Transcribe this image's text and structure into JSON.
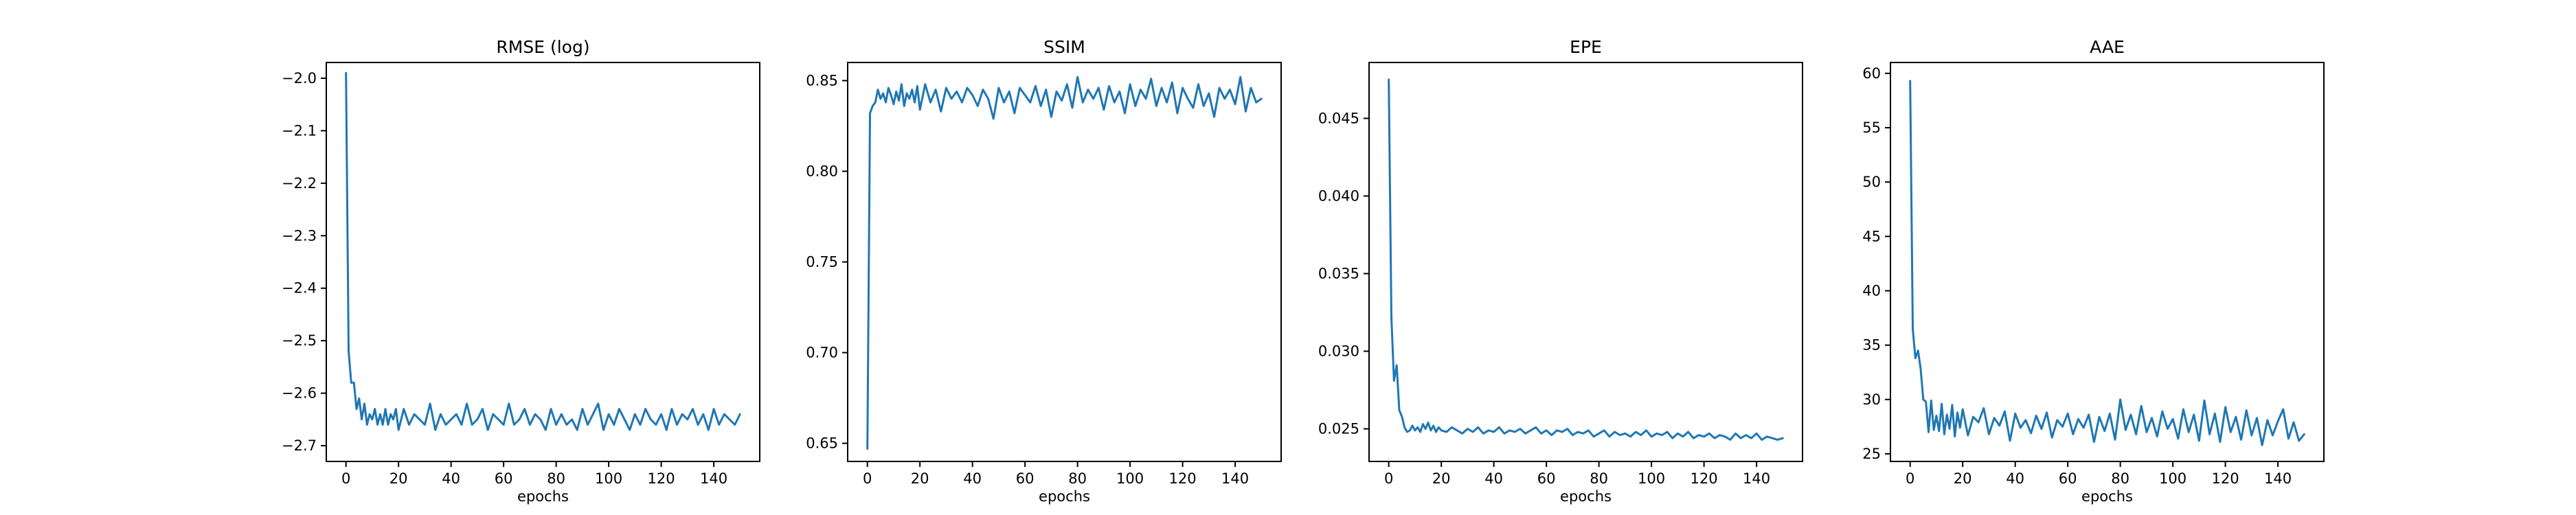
{
  "colors": {
    "series": "#1f77b4",
    "axis": "#000000",
    "background": "#ffffff"
  },
  "chart_data": [
    {
      "type": "line",
      "title": "RMSE (log)",
      "xlabel": "epochs",
      "ylabel": "",
      "xlim": [
        -7.5,
        157.5
      ],
      "ylim": [
        -2.73,
        -1.97
      ],
      "xticks": [
        0,
        20,
        40,
        60,
        80,
        100,
        120,
        140
      ],
      "yticks": [
        -2.0,
        -2.1,
        -2.2,
        -2.3,
        -2.4,
        -2.5,
        -2.6,
        -2.7
      ],
      "ytick_labels": [
        "−2.0",
        "−2.1",
        "−2.2",
        "−2.3",
        "−2.4",
        "−2.5",
        "−2.6",
        "−2.7"
      ],
      "grid": false,
      "legend": "none",
      "series": [
        {
          "x": [
            0,
            1,
            2,
            3,
            4,
            5,
            6,
            7,
            8,
            9,
            10,
            11,
            12,
            13,
            14,
            15,
            16,
            17,
            18,
            19,
            20,
            22,
            24,
            26,
            28,
            30,
            32,
            34,
            36,
            38,
            40,
            42,
            44,
            46,
            48,
            50,
            52,
            54,
            56,
            58,
            60,
            62,
            64,
            66,
            68,
            70,
            72,
            74,
            76,
            78,
            80,
            82,
            84,
            86,
            88,
            90,
            92,
            94,
            96,
            98,
            100,
            102,
            104,
            106,
            108,
            110,
            112,
            114,
            116,
            118,
            120,
            122,
            124,
            126,
            128,
            130,
            132,
            134,
            136,
            138,
            140,
            142,
            144,
            146,
            148,
            150
          ],
          "values": [
            -1.99,
            -2.52,
            -2.58,
            -2.58,
            -2.63,
            -2.61,
            -2.65,
            -2.62,
            -2.66,
            -2.64,
            -2.65,
            -2.63,
            -2.66,
            -2.64,
            -2.66,
            -2.63,
            -2.66,
            -2.64,
            -2.65,
            -2.63,
            -2.67,
            -2.63,
            -2.66,
            -2.64,
            -2.65,
            -2.66,
            -2.62,
            -2.67,
            -2.64,
            -2.66,
            -2.65,
            -2.64,
            -2.66,
            -2.62,
            -2.66,
            -2.65,
            -2.63,
            -2.67,
            -2.64,
            -2.65,
            -2.66,
            -2.62,
            -2.66,
            -2.65,
            -2.63,
            -2.66,
            -2.64,
            -2.65,
            -2.67,
            -2.63,
            -2.66,
            -2.64,
            -2.66,
            -2.65,
            -2.67,
            -2.63,
            -2.66,
            -2.64,
            -2.62,
            -2.67,
            -2.64,
            -2.66,
            -2.63,
            -2.65,
            -2.67,
            -2.64,
            -2.66,
            -2.63,
            -2.65,
            -2.66,
            -2.64,
            -2.67,
            -2.63,
            -2.66,
            -2.64,
            -2.65,
            -2.63,
            -2.66,
            -2.64,
            -2.67,
            -2.63,
            -2.66,
            -2.64,
            -2.65,
            -2.66,
            -2.64
          ]
        }
      ]
    },
    {
      "type": "line",
      "title": "SSIM",
      "xlabel": "epochs",
      "ylabel": "",
      "xlim": [
        -7.5,
        157.5
      ],
      "ylim": [
        0.64,
        0.86
      ],
      "xticks": [
        0,
        20,
        40,
        60,
        80,
        100,
        120,
        140
      ],
      "yticks": [
        0.65,
        0.7,
        0.75,
        0.8,
        0.85
      ],
      "ytick_labels": [
        "0.65",
        "0.70",
        "0.75",
        "0.80",
        "0.85"
      ],
      "grid": false,
      "legend": "none",
      "series": [
        {
          "x": [
            0,
            1,
            2,
            3,
            4,
            5,
            6,
            7,
            8,
            9,
            10,
            11,
            12,
            13,
            14,
            15,
            16,
            17,
            18,
            19,
            20,
            22,
            24,
            26,
            28,
            30,
            32,
            34,
            36,
            38,
            40,
            42,
            44,
            46,
            48,
            50,
            52,
            54,
            56,
            58,
            60,
            62,
            64,
            66,
            68,
            70,
            72,
            74,
            76,
            78,
            80,
            82,
            84,
            86,
            88,
            90,
            92,
            94,
            96,
            98,
            100,
            102,
            104,
            106,
            108,
            110,
            112,
            114,
            116,
            118,
            120,
            122,
            124,
            126,
            128,
            130,
            132,
            134,
            136,
            138,
            140,
            142,
            144,
            146,
            148,
            150
          ],
          "values": [
            0.647,
            0.832,
            0.836,
            0.838,
            0.845,
            0.84,
            0.843,
            0.838,
            0.846,
            0.842,
            0.837,
            0.844,
            0.839,
            0.848,
            0.836,
            0.843,
            0.84,
            0.845,
            0.838,
            0.847,
            0.834,
            0.848,
            0.838,
            0.845,
            0.833,
            0.846,
            0.84,
            0.844,
            0.838,
            0.846,
            0.842,
            0.836,
            0.845,
            0.84,
            0.829,
            0.846,
            0.838,
            0.844,
            0.832,
            0.846,
            0.842,
            0.838,
            0.847,
            0.836,
            0.845,
            0.83,
            0.844,
            0.839,
            0.848,
            0.835,
            0.852,
            0.838,
            0.845,
            0.84,
            0.846,
            0.834,
            0.847,
            0.838,
            0.844,
            0.832,
            0.848,
            0.836,
            0.845,
            0.84,
            0.851,
            0.836,
            0.846,
            0.838,
            0.849,
            0.832,
            0.846,
            0.84,
            0.835,
            0.848,
            0.836,
            0.843,
            0.83,
            0.846,
            0.84,
            0.845,
            0.837,
            0.852,
            0.833,
            0.846,
            0.838,
            0.84
          ]
        }
      ]
    },
    {
      "type": "line",
      "title": "EPE",
      "xlabel": "epochs",
      "ylabel": "",
      "xlim": [
        -7.5,
        157.5
      ],
      "ylim": [
        0.0229,
        0.0486
      ],
      "xticks": [
        0,
        20,
        40,
        60,
        80,
        100,
        120,
        140
      ],
      "yticks": [
        0.025,
        0.03,
        0.035,
        0.04,
        0.045
      ],
      "ytick_labels": [
        "0.025",
        "0.030",
        "0.035",
        "0.040",
        "0.045"
      ],
      "grid": false,
      "legend": "none",
      "series": [
        {
          "x": [
            0,
            1,
            2,
            3,
            4,
            5,
            6,
            7,
            8,
            9,
            10,
            11,
            12,
            13,
            14,
            15,
            16,
            17,
            18,
            19,
            20,
            22,
            24,
            26,
            28,
            30,
            32,
            34,
            36,
            38,
            40,
            42,
            44,
            46,
            48,
            50,
            52,
            54,
            56,
            58,
            60,
            62,
            64,
            66,
            68,
            70,
            72,
            74,
            76,
            78,
            80,
            82,
            84,
            86,
            88,
            90,
            92,
            94,
            96,
            98,
            100,
            102,
            104,
            106,
            108,
            110,
            112,
            114,
            116,
            118,
            120,
            122,
            124,
            126,
            128,
            130,
            132,
            134,
            136,
            138,
            140,
            142,
            144,
            146,
            148,
            150
          ],
          "values": [
            0.0475,
            0.0322,
            0.0281,
            0.0291,
            0.0262,
            0.0258,
            0.0251,
            0.0248,
            0.0249,
            0.0252,
            0.0249,
            0.0251,
            0.0248,
            0.0253,
            0.025,
            0.0254,
            0.0249,
            0.0252,
            0.0248,
            0.0251,
            0.0249,
            0.0248,
            0.0251,
            0.0249,
            0.0247,
            0.025,
            0.0248,
            0.0251,
            0.0247,
            0.0249,
            0.0248,
            0.0251,
            0.0247,
            0.0249,
            0.0248,
            0.025,
            0.0247,
            0.0249,
            0.0251,
            0.0247,
            0.0249,
            0.0246,
            0.0249,
            0.0248,
            0.025,
            0.0246,
            0.0248,
            0.0247,
            0.0249,
            0.0245,
            0.0247,
            0.0249,
            0.0245,
            0.0248,
            0.0246,
            0.0247,
            0.0245,
            0.0248,
            0.0246,
            0.0249,
            0.0245,
            0.0247,
            0.0246,
            0.0248,
            0.0244,
            0.0247,
            0.0245,
            0.0248,
            0.0244,
            0.0246,
            0.0245,
            0.0247,
            0.0244,
            0.0246,
            0.0245,
            0.0243,
            0.0247,
            0.0244,
            0.0246,
            0.0244,
            0.0247,
            0.0243,
            0.0245,
            0.0244,
            0.0243,
            0.0244
          ]
        }
      ]
    },
    {
      "type": "line",
      "title": "AAE",
      "xlabel": "epochs",
      "ylabel": "",
      "xlim": [
        -7.5,
        157.5
      ],
      "ylim": [
        24.3,
        61.0
      ],
      "xticks": [
        0,
        20,
        40,
        60,
        80,
        100,
        120,
        140
      ],
      "yticks": [
        25,
        30,
        35,
        40,
        45,
        50,
        55,
        60
      ],
      "ytick_labels": [
        "25",
        "30",
        "35",
        "40",
        "45",
        "50",
        "55",
        "60"
      ],
      "grid": false,
      "legend": "none",
      "series": [
        {
          "x": [
            0,
            1,
            2,
            3,
            4,
            5,
            6,
            7,
            8,
            9,
            10,
            11,
            12,
            13,
            14,
            15,
            16,
            17,
            18,
            19,
            20,
            22,
            24,
            26,
            28,
            30,
            32,
            34,
            36,
            38,
            40,
            42,
            44,
            46,
            48,
            50,
            52,
            54,
            56,
            58,
            60,
            62,
            64,
            66,
            68,
            70,
            72,
            74,
            76,
            78,
            80,
            82,
            84,
            86,
            88,
            90,
            92,
            94,
            96,
            98,
            100,
            102,
            104,
            106,
            108,
            110,
            112,
            114,
            116,
            118,
            120,
            122,
            124,
            126,
            128,
            130,
            132,
            134,
            136,
            138,
            140,
            142,
            144,
            146,
            148,
            150
          ],
          "values": [
            59.3,
            36.5,
            33.8,
            34.5,
            32.8,
            30.0,
            29.8,
            27.0,
            29.9,
            27.2,
            28.5,
            27.1,
            29.6,
            26.8,
            28.6,
            27.3,
            29.5,
            26.6,
            28.8,
            27.4,
            29.1,
            26.7,
            28.4,
            27.9,
            29.2,
            26.8,
            28.3,
            27.6,
            28.9,
            26.2,
            28.7,
            27.4,
            28.1,
            26.9,
            28.5,
            27.3,
            28.8,
            26.5,
            28.1,
            27.5,
            28.7,
            26.8,
            28.2,
            27.4,
            28.6,
            26.1,
            28.4,
            27.1,
            28.7,
            26.3,
            30.0,
            27.2,
            28.6,
            26.8,
            29.4,
            27.0,
            28.3,
            26.6,
            28.9,
            27.3,
            28.2,
            26.4,
            29.1,
            27.0,
            28.6,
            26.2,
            29.9,
            26.8,
            28.7,
            26.1,
            29.3,
            27.0,
            28.4,
            26.3,
            29.0,
            26.7,
            28.3,
            25.8,
            28.1,
            26.7,
            28.0,
            29.1,
            26.4,
            27.9,
            26.2,
            26.8
          ]
        }
      ]
    }
  ]
}
